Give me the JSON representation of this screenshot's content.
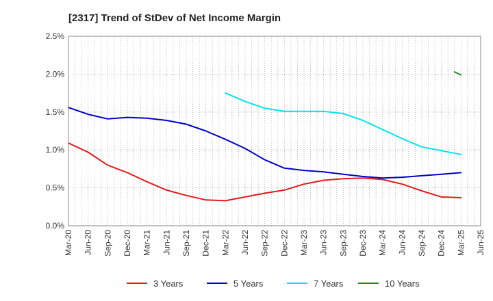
{
  "chart_data": {
    "type": "line",
    "title": "[2317]  Trend of StDev of Net Income Margin",
    "xlabel": "",
    "ylabel": "",
    "x_tick_labels": [
      "Mar-20",
      "Jun-20",
      "Sep-20",
      "Dec-20",
      "Mar-21",
      "Jun-21",
      "Sep-21",
      "Dec-21",
      "Mar-22",
      "Jun-22",
      "Sep-22",
      "Dec-22",
      "Mar-23",
      "Jun-23",
      "Sep-23",
      "Dec-23",
      "Mar-24",
      "Jun-24",
      "Sep-24",
      "Dec-24",
      "Mar-25",
      "Jun-25"
    ],
    "y_tick_labels": [
      "0.0%",
      "0.5%",
      "1.0%",
      "1.5%",
      "2.0%",
      "2.5%"
    ],
    "ylim": [
      0,
      2.5
    ],
    "y_unit": "%",
    "grid": true,
    "legend_position": "bottom",
    "series": [
      {
        "name": "3 Years",
        "color": "#e31a1c",
        "x": [
          "Mar-20",
          "Jun-20",
          "Sep-20",
          "Dec-20",
          "Mar-21",
          "Jun-21",
          "Sep-21",
          "Dec-21",
          "Mar-22",
          "Jun-22",
          "Sep-22",
          "Dec-22",
          "Mar-23",
          "Jun-23",
          "Sep-23",
          "Dec-23",
          "Mar-24",
          "Jun-24",
          "Sep-24",
          "Dec-24",
          "Mar-25"
        ],
        "values": [
          1.09,
          0.97,
          0.8,
          0.7,
          0.58,
          0.47,
          0.4,
          0.34,
          0.33,
          0.38,
          0.43,
          0.47,
          0.55,
          0.6,
          0.62,
          0.63,
          0.61,
          0.55,
          0.46,
          0.38,
          0.37
        ]
      },
      {
        "name": "5 Years",
        "color": "#0000c8",
        "x": [
          "Mar-20",
          "Jun-20",
          "Sep-20",
          "Dec-20",
          "Mar-21",
          "Jun-21",
          "Sep-21",
          "Dec-21",
          "Mar-22",
          "Jun-22",
          "Sep-22",
          "Dec-22",
          "Mar-23",
          "Jun-23",
          "Sep-23",
          "Dec-23",
          "Mar-24",
          "Jun-24",
          "Sep-24",
          "Dec-24",
          "Mar-25"
        ],
        "values": [
          1.56,
          1.47,
          1.41,
          1.43,
          1.42,
          1.39,
          1.34,
          1.25,
          1.14,
          1.02,
          0.87,
          0.76,
          0.73,
          0.71,
          0.68,
          0.65,
          0.63,
          0.64,
          0.66,
          0.68,
          0.7
        ]
      },
      {
        "name": "7 Years",
        "color": "#00e5ee",
        "x": [
          "Mar-22",
          "Jun-22",
          "Sep-22",
          "Dec-22",
          "Mar-23",
          "Jun-23",
          "Sep-23",
          "Dec-23",
          "Mar-24",
          "Jun-24",
          "Sep-24",
          "Dec-24",
          "Mar-25"
        ],
        "values": [
          1.75,
          1.64,
          1.55,
          1.51,
          1.51,
          1.51,
          1.48,
          1.39,
          1.27,
          1.15,
          1.04,
          0.99,
          0.94
        ]
      },
      {
        "name": "10 Years",
        "color": "#228b22",
        "x": [
          "Feb-25",
          "Mar-25"
        ],
        "values": [
          2.03,
          1.99
        ]
      }
    ]
  }
}
